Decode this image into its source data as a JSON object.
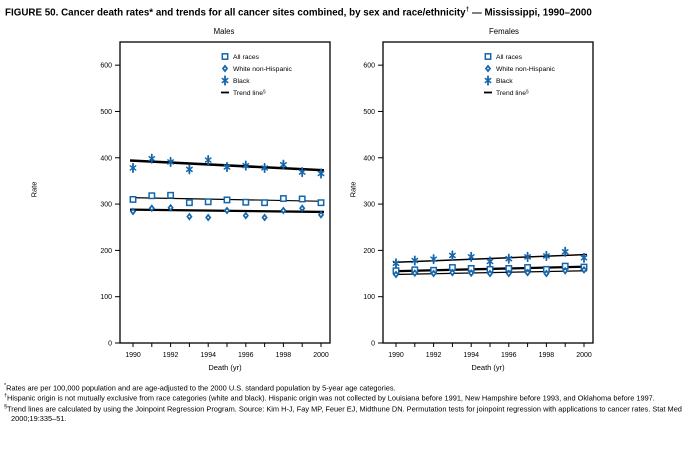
{
  "figure": {
    "title_main": "FIGURE 50. Cancer death rates* and trends for all cancer sites combined, by sex and race/ethnicity",
    "title_sup": "†",
    "title_tail": " — Mississippi, 1990–2000"
  },
  "colors": {
    "marker_blue": "#1565ab",
    "line_black": "#000000"
  },
  "chart_data": [
    {
      "type": "scatter",
      "title": "Males",
      "xlabel": "Death (yr)",
      "ylabel": "Rate",
      "x": [
        1990,
        1991,
        1992,
        1993,
        1994,
        1995,
        1996,
        1997,
        1998,
        1999,
        2000
      ],
      "xticks_labeled": [
        1990,
        1992,
        1994,
        1996,
        1998,
        2000
      ],
      "yticks": [
        0,
        100,
        200,
        300,
        400,
        500,
        600
      ],
      "ylim": [
        0,
        650
      ],
      "grid": false,
      "legend_position": "top-right-inside",
      "legend": [
        "All races",
        "White non-Hispanic",
        "Black",
        "Trend line"
      ],
      "legend_sup": "§",
      "series": [
        {
          "name": "All races",
          "marker": "square",
          "values": [
            310,
            318,
            319,
            303,
            305,
            309,
            304,
            303,
            312,
            311,
            303
          ],
          "trend": {
            "x": [
              1990,
              2000
            ],
            "y": [
              314,
              306
            ]
          }
        },
        {
          "name": "White non-Hispanic",
          "marker": "diamond",
          "values": [
            284,
            291,
            292,
            273,
            271,
            286,
            275,
            271,
            286,
            291,
            277
          ],
          "trend": {
            "x": [
              1990,
              2000
            ],
            "y": [
              288,
              283
            ]
          }
        },
        {
          "name": "Black",
          "marker": "asterisk",
          "values": [
            378,
            398,
            391,
            375,
            395,
            380,
            383,
            378,
            385,
            369,
            366
          ],
          "trend": {
            "x": [
              1990,
              2000
            ],
            "y": [
              394,
              373
            ]
          }
        }
      ]
    },
    {
      "type": "scatter",
      "title": "Females",
      "xlabel": "Death (yr)",
      "ylabel": "Rate",
      "x": [
        1990,
        1991,
        1992,
        1993,
        1994,
        1995,
        1996,
        1997,
        1998,
        1999,
        2000
      ],
      "xticks_labeled": [
        1990,
        1992,
        1994,
        1996,
        1998,
        2000
      ],
      "yticks": [
        0,
        100,
        200,
        300,
        400,
        500,
        600
      ],
      "ylim": [
        0,
        650
      ],
      "grid": false,
      "legend_position": "top-right-inside",
      "legend": [
        "All races",
        "White non-Hispanic",
        "Black",
        "Trend line"
      ],
      "legend_sup": "§",
      "series": [
        {
          "name": "All races",
          "marker": "square",
          "values": [
            156,
            158,
            157,
            163,
            161,
            159,
            161,
            163,
            159,
            166,
            164
          ],
          "trend": {
            "x": [
              1990,
              2000
            ],
            "y": [
              155,
              165
            ]
          }
        },
        {
          "name": "White non-Hispanic",
          "marker": "diamond",
          "values": [
            148,
            151,
            150,
            152,
            151,
            150,
            150,
            152,
            150,
            156,
            158
          ],
          "trend": {
            "x": [
              1990,
              2000
            ],
            "y": [
              148,
              156
            ]
          }
        },
        {
          "name": "Black",
          "marker": "asterisk",
          "values": [
            172,
            178,
            181,
            189,
            186,
            176,
            182,
            186,
            188,
            197,
            184
          ],
          "trend": {
            "x": [
              1990,
              2000
            ],
            "y": [
              174,
              191
            ]
          }
        }
      ]
    }
  ],
  "footnotes": [
    {
      "marker": "*",
      "text": "Rates are per 100,000 population and are age-adjusted to the 2000 U.S. standard population by 5-year age categories."
    },
    {
      "marker": "†",
      "text": "Hispanic origin is not mutually exclusive from race categories (white and black). Hispanic origin was not collected by Louisiana before 1991, New Hampshire before 1993, and Oklahoma before 1997."
    },
    {
      "marker": "§",
      "text": "Trend lines are calculated by using the Joinpoint Regression Program. Source: Kim H-J, Fay MP, Feuer EJ, Midthune DN. Permutation tests for joinpoint regression with applications to cancer rates. Stat Med 2000;19:335–51."
    }
  ]
}
